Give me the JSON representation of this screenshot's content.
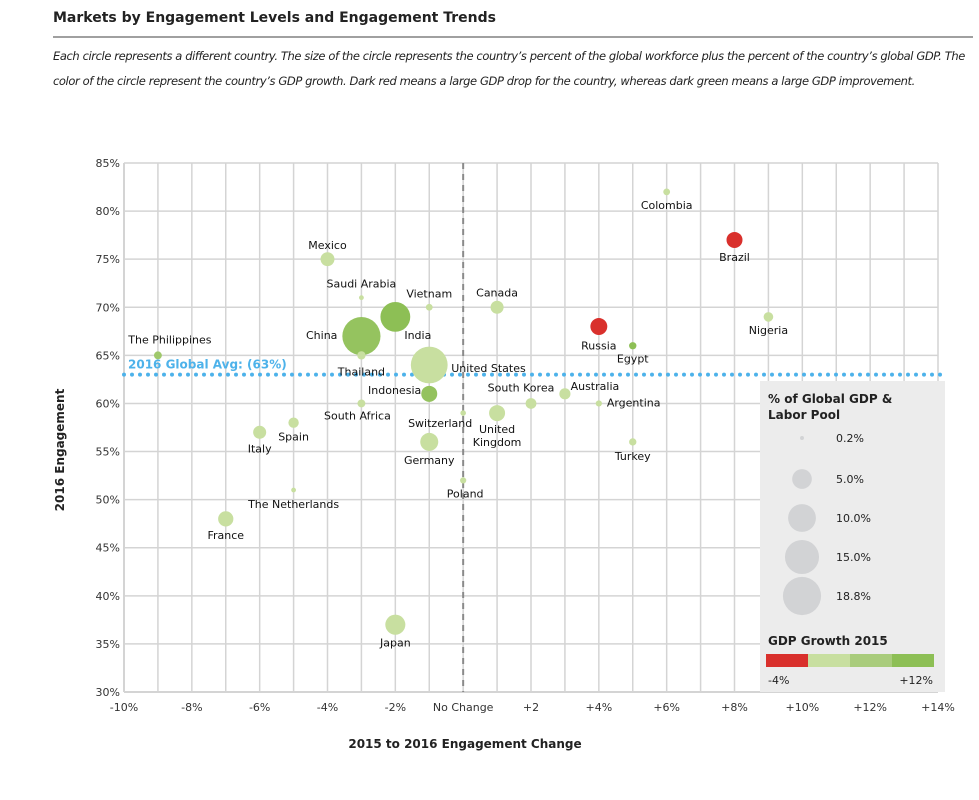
{
  "title": "Markets by Engagement Levels and Engagement Trends",
  "description": "Each circle represents a different country. The size of the circle represents the country’s percent of the global workforce plus the percent of the country’s global GDP. The color of the circle represent the country’s GDP growth. Dark red means a large GDP drop for the country, whereas dark green means a large GDP improvement.",
  "chart_data": {
    "type": "scatter",
    "subtype": "bubble",
    "xlabel": "2015 to 2016 Engagement Change",
    "ylabel": "2016 Engagement",
    "xlim": [
      -10,
      14
    ],
    "ylim": [
      30,
      85
    ],
    "grid": true,
    "x_ticks": [
      {
        "value": -10,
        "label": "-10%"
      },
      {
        "value": -8,
        "label": "-8%"
      },
      {
        "value": -6,
        "label": "-6%"
      },
      {
        "value": -4,
        "label": "-4%"
      },
      {
        "value": -2,
        "label": "-2%"
      },
      {
        "value": 0,
        "label": "No Change"
      },
      {
        "value": 2,
        "label": "+2"
      },
      {
        "value": 4,
        "label": "+4%"
      },
      {
        "value": 6,
        "label": "+6%"
      },
      {
        "value": 8,
        "label": "+8%"
      },
      {
        "value": 10,
        "label": "+10%"
      },
      {
        "value": 12,
        "label": "+12%"
      },
      {
        "value": 14,
        "label": "+14%"
      }
    ],
    "y_ticks": [
      {
        "value": 30,
        "label": "30%"
      },
      {
        "value": 35,
        "label": "35%"
      },
      {
        "value": 40,
        "label": "40%"
      },
      {
        "value": 45,
        "label": "45%"
      },
      {
        "value": 50,
        "label": "50%"
      },
      {
        "value": 55,
        "label": "55%"
      },
      {
        "value": 60,
        "label": "60%"
      },
      {
        "value": 65,
        "label": "65%"
      },
      {
        "value": 70,
        "label": "70%"
      },
      {
        "value": 75,
        "label": "75%"
      },
      {
        "value": 80,
        "label": "80%"
      },
      {
        "value": 85,
        "label": "85%"
      }
    ],
    "reference_line": {
      "axis": "y",
      "value": 63,
      "label": "2016 Global Avg: (63%)",
      "color": "#4db2ea",
      "style": "dotted"
    },
    "zero_line": {
      "axis": "x",
      "value": 0,
      "style": "dashed",
      "color": "#8a8a8a"
    },
    "points": [
      {
        "name": "The Philippines",
        "x": -9,
        "y": 65,
        "size": 0.8,
        "color": "#9fc86b"
      },
      {
        "name": "Mexico",
        "x": -4,
        "y": 75,
        "size": 2.5,
        "color": "#c8dfa0"
      },
      {
        "name": "Saudi Arabia",
        "x": -3,
        "y": 71,
        "size": 0.3,
        "color": "#c8dfa0"
      },
      {
        "name": "China",
        "x": -3,
        "y": 67,
        "size": 18.8,
        "color": "#95c35f"
      },
      {
        "name": "Thailand",
        "x": -3,
        "y": 65,
        "size": 0.9,
        "color": "#c8dfa0"
      },
      {
        "name": "India",
        "x": -2,
        "y": 69,
        "size": 11.5,
        "color": "#8dbf55"
      },
      {
        "name": "Vietnam",
        "x": -1,
        "y": 70,
        "size": 0.6,
        "color": "#c8dfa0"
      },
      {
        "name": "United States",
        "x": -1,
        "y": 64,
        "size": 17.5,
        "color": "#c8dfa0"
      },
      {
        "name": "Indonesia",
        "x": -1,
        "y": 61,
        "size": 3.3,
        "color": "#94c25e"
      },
      {
        "name": "South Africa",
        "x": -3,
        "y": 60,
        "size": 0.8,
        "color": "#c8dfa0"
      },
      {
        "name": "Switzerland",
        "x": 0,
        "y": 59,
        "size": 0.4,
        "color": "#c8dfa0"
      },
      {
        "name": "Germany",
        "x": -1,
        "y": 56,
        "size": 4.2,
        "color": "#c8dfa0"
      },
      {
        "name": "Poland",
        "x": 0,
        "y": 52,
        "size": 0.5,
        "color": "#c8dfa0"
      },
      {
        "name": "Canada",
        "x": 1,
        "y": 70,
        "size": 2.2,
        "color": "#c8dfa0"
      },
      {
        "name": "United Kingdom",
        "x": 1,
        "y": 59,
        "size": 3.3,
        "color": "#c8dfa0"
      },
      {
        "name": "South Korea",
        "x": 2,
        "y": 60,
        "size": 1.5,
        "color": "#c8dfa0"
      },
      {
        "name": "Australia",
        "x": 3,
        "y": 61,
        "size": 1.6,
        "color": "#c8dfa0"
      },
      {
        "name": "Argentina",
        "x": 4,
        "y": 60,
        "size": 0.5,
        "color": "#c8dfa0"
      },
      {
        "name": "Russia",
        "x": 4,
        "y": 68,
        "size": 3.7,
        "color": "#d9302c"
      },
      {
        "name": "Egypt",
        "x": 5,
        "y": 66,
        "size": 0.7,
        "color": "#8dbf55"
      },
      {
        "name": "Turkey",
        "x": 5,
        "y": 56,
        "size": 0.7,
        "color": "#c8dfa0"
      },
      {
        "name": "Colombia",
        "x": 6,
        "y": 82,
        "size": 0.6,
        "color": "#c8dfa0"
      },
      {
        "name": "Brazil",
        "x": 8,
        "y": 77,
        "size": 3.3,
        "color": "#d9302c"
      },
      {
        "name": "Nigeria",
        "x": 9,
        "y": 69,
        "size": 1.2,
        "color": "#c8dfa0"
      },
      {
        "name": "Spain",
        "x": -5,
        "y": 58,
        "size": 1.4,
        "color": "#c8dfa0"
      },
      {
        "name": "Italy",
        "x": -6,
        "y": 57,
        "size": 2.2,
        "color": "#c8dfa0"
      },
      {
        "name": "The Netherlands",
        "x": -5,
        "y": 51,
        "size": 0.3,
        "color": "#c8dfa0"
      },
      {
        "name": "France",
        "x": -7,
        "y": 48,
        "size": 3.0,
        "color": "#c8dfa0"
      },
      {
        "name": "Japan",
        "x": -2,
        "y": 37,
        "size": 5.2,
        "color": "#c8dfa0"
      }
    ],
    "legend": {
      "placement": "bottom-right",
      "size_title": "% of Global GDP & Labor Pool",
      "size_title_lines": [
        "% of Global GDP &",
        "Labor Pool"
      ],
      "sizes": [
        {
          "value": 0.2,
          "label": "0.2%"
        },
        {
          "value": 5.0,
          "label": "5.0%"
        },
        {
          "value": 10.0,
          "label": "10.0%"
        },
        {
          "value": 15.0,
          "label": "15.0%"
        },
        {
          "value": 18.8,
          "label": "18.8%"
        }
      ],
      "color_title": "GDP Growth 2015",
      "color_scale": [
        "#d9302c",
        "#c8dfa0",
        "#a9cc7c",
        "#8dbf55"
      ],
      "color_min_label": "-4%",
      "color_max_label": "+12%"
    }
  }
}
